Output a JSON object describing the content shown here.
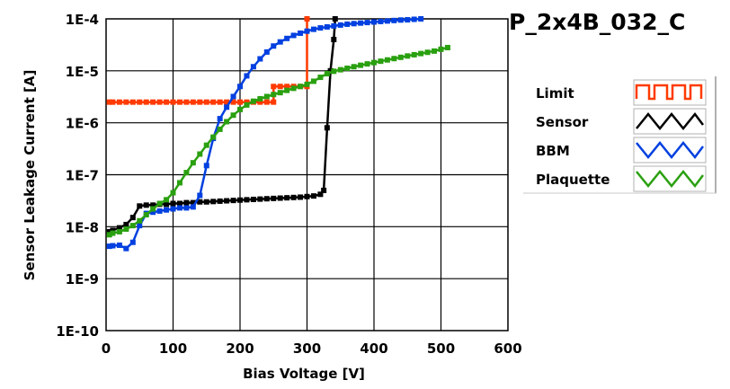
{
  "chart_data": {
    "type": "line",
    "title": "P_2x4B_032_C",
    "xlabel": "Bias Voltage [V]",
    "ylabel": "Sensor Leakage Current [A]",
    "xlim": [
      0,
      600
    ],
    "ylim": [
      1e-10,
      0.0001
    ],
    "yscale": "log",
    "xticks": [
      0,
      100,
      200,
      300,
      400,
      500,
      600
    ],
    "xtick_labels": [
      "0",
      "100",
      "200",
      "300",
      "400",
      "500",
      "600"
    ],
    "yticks": [
      1e-10,
      1e-09,
      1e-08,
      1e-07,
      1e-06,
      1e-05,
      0.0001
    ],
    "ytick_labels": [
      "1E-10",
      "1E-9",
      "1E-8",
      "1E-7",
      "1E-6",
      "1E-5",
      "1E-4"
    ],
    "grid": true,
    "legend_position": "right",
    "series": [
      {
        "name": "Limit",
        "color": "#ff3a00",
        "x": [
          5,
          10,
          20,
          30,
          40,
          50,
          60,
          70,
          80,
          90,
          100,
          110,
          120,
          130,
          140,
          150,
          160,
          170,
          180,
          190,
          200,
          210,
          220,
          230,
          240,
          250,
          250,
          260,
          270,
          280,
          290,
          300,
          300
        ],
        "y": [
          2.5e-06,
          2.5e-06,
          2.5e-06,
          2.5e-06,
          2.5e-06,
          2.5e-06,
          2.5e-06,
          2.5e-06,
          2.5e-06,
          2.5e-06,
          2.5e-06,
          2.5e-06,
          2.5e-06,
          2.5e-06,
          2.5e-06,
          2.5e-06,
          2.5e-06,
          2.5e-06,
          2.5e-06,
          2.5e-06,
          2.5e-06,
          2.5e-06,
          2.5e-06,
          2.5e-06,
          2.5e-06,
          2.5e-06,
          5e-06,
          5e-06,
          5e-06,
          5e-06,
          5e-06,
          5e-06,
          0.0001
        ]
      },
      {
        "name": "Sensor",
        "color": "#000000",
        "x": [
          5,
          10,
          20,
          30,
          40,
          50,
          60,
          70,
          80,
          90,
          100,
          110,
          120,
          130,
          140,
          150,
          160,
          170,
          180,
          190,
          200,
          210,
          220,
          230,
          240,
          250,
          260,
          270,
          280,
          290,
          300,
          310,
          320,
          325,
          330,
          335,
          340,
          342
        ],
        "y": [
          8e-09,
          8.5e-09,
          9.5e-09,
          1.1e-08,
          1.5e-08,
          2.5e-08,
          2.6e-08,
          2.6e-08,
          2.7e-08,
          2.7e-08,
          2.8e-08,
          2.8e-08,
          2.9e-08,
          2.9e-08,
          3e-08,
          3e-08,
          3.05e-08,
          3.1e-08,
          3.15e-08,
          3.2e-08,
          3.25e-08,
          3.3e-08,
          3.35e-08,
          3.4e-08,
          3.45e-08,
          3.5e-08,
          3.55e-08,
          3.6e-08,
          3.65e-08,
          3.7e-08,
          3.8e-08,
          3.9e-08,
          4.2e-08,
          5e-08,
          8e-07,
          1e-05,
          4e-05,
          0.0001
        ]
      },
      {
        "name": "BBM",
        "color": "#0040e0",
        "x": [
          5,
          10,
          20,
          30,
          40,
          50,
          60,
          70,
          80,
          90,
          100,
          110,
          120,
          130,
          140,
          150,
          160,
          170,
          180,
          190,
          200,
          210,
          220,
          230,
          240,
          250,
          260,
          270,
          280,
          290,
          300,
          310,
          320,
          330,
          340,
          350,
          360,
          370,
          380,
          390,
          400,
          410,
          420,
          430,
          440,
          450,
          460,
          470
        ],
        "y": [
          4.2e-09,
          4.3e-09,
          4.4e-09,
          3.8e-09,
          5e-09,
          1.05e-08,
          1.8e-08,
          1.9e-08,
          2e-08,
          2.1e-08,
          2.2e-08,
          2.3e-08,
          2.3e-08,
          2.4e-08,
          4e-08,
          1.5e-07,
          5e-07,
          1.2e-06,
          2e-06,
          3.2e-06,
          5e-06,
          8e-06,
          1.2e-05,
          1.7e-05,
          2.3e-05,
          3e-05,
          3.6e-05,
          4.2e-05,
          4.8e-05,
          5.3e-05,
          5.8e-05,
          6.3e-05,
          6.7e-05,
          7e-05,
          7.3e-05,
          7.6e-05,
          7.9e-05,
          8.1e-05,
          8.3e-05,
          8.5e-05,
          8.7e-05,
          8.9e-05,
          9.1e-05,
          9.3e-05,
          9.5e-05,
          9.6e-05,
          9.8e-05,
          0.0001
        ]
      },
      {
        "name": "Plaquette",
        "color": "#2aa010",
        "x": [
          5,
          10,
          20,
          30,
          40,
          50,
          60,
          70,
          80,
          90,
          100,
          110,
          120,
          130,
          140,
          150,
          160,
          170,
          180,
          190,
          200,
          210,
          220,
          230,
          240,
          250,
          260,
          270,
          280,
          290,
          300,
          310,
          320,
          330,
          340,
          350,
          360,
          370,
          380,
          390,
          400,
          410,
          420,
          430,
          440,
          450,
          460,
          470,
          480,
          490,
          500,
          510
        ],
        "y": [
          7e-09,
          7.5e-09,
          8e-09,
          9e-09,
          1.05e-08,
          1.3e-08,
          1.7e-08,
          2.2e-08,
          2.8e-08,
          3.3e-08,
          4.5e-08,
          7e-08,
          1.1e-07,
          1.7e-07,
          2.5e-07,
          3.7e-07,
          5.3e-07,
          7.5e-07,
          1.05e-06,
          1.4e-06,
          1.8e-06,
          2.2e-06,
          2.6e-06,
          2.9e-06,
          3.2e-06,
          3.5e-06,
          3.8e-06,
          4.2e-06,
          4.6e-06,
          5e-06,
          5.5e-06,
          6.3e-06,
          7.5e-06,
          8.8e-06,
          9.8e-06,
          1.05e-05,
          1.12e-05,
          1.2e-05,
          1.28e-05,
          1.36e-05,
          1.44e-05,
          1.53e-05,
          1.62e-05,
          1.72e-05,
          1.82e-05,
          1.93e-05,
          2.04e-05,
          2.15e-05,
          2.27e-05,
          2.4e-05,
          2.6e-05,
          2.8e-05
        ]
      }
    ]
  }
}
